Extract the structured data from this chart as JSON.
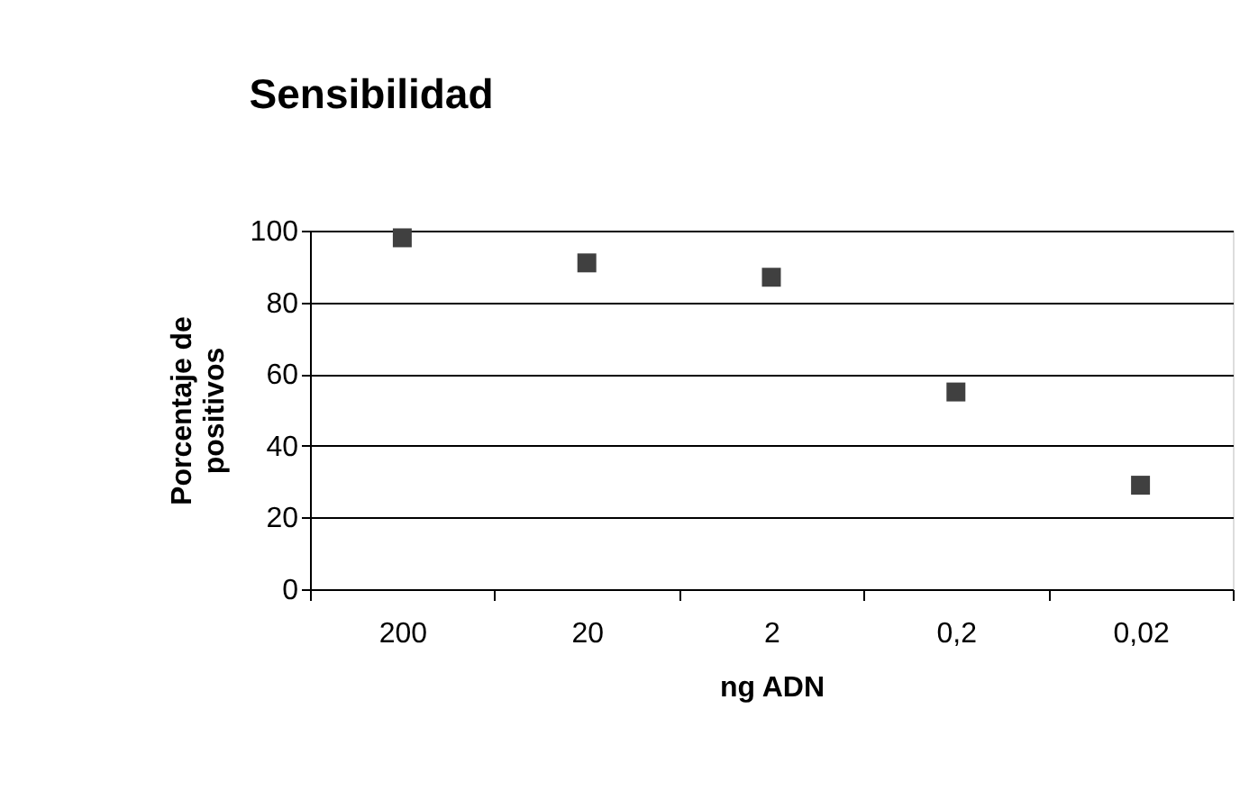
{
  "chart_data": {
    "type": "scatter",
    "title": "Sensibilidad",
    "xlabel": "ng ADN",
    "ylabel": "Porcentaje de positivos",
    "categories": [
      "200",
      "20",
      "2",
      "0,2",
      "0,02"
    ],
    "series": [
      {
        "color": "#404040",
        "values": [
          98,
          91,
          87,
          55,
          29
        ]
      }
    ],
    "ylim": [
      0,
      100
    ],
    "yticks": [
      0,
      20,
      40,
      60,
      80,
      100
    ],
    "grid": "y",
    "marker": "square"
  }
}
